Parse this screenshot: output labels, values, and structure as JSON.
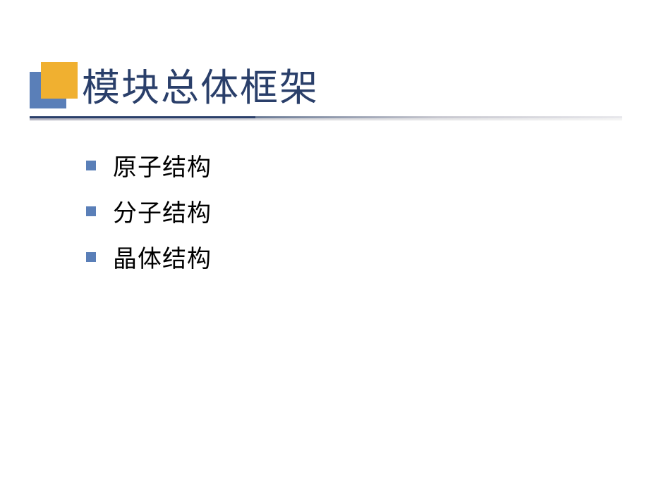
{
  "slide": {
    "title": "模块总体框架",
    "title_color": "#2a3f6a",
    "title_fontsize": 54,
    "icon": {
      "back_color": "#5a7fb8",
      "front_color": "#f0b030",
      "size": 52
    },
    "underline": {
      "solid_color": "#2a3f6a",
      "gradient_start": "#6a7a95",
      "gradient_end": "#e8e8ec"
    },
    "items": [
      {
        "label": "原子结构"
      },
      {
        "label": "分子结构"
      },
      {
        "label": "晶体结构"
      }
    ],
    "bullet_color": "#5a7fb8",
    "bullet_size": 14,
    "item_fontsize": 34,
    "item_color": "#000000",
    "background_color": "#ffffff"
  }
}
